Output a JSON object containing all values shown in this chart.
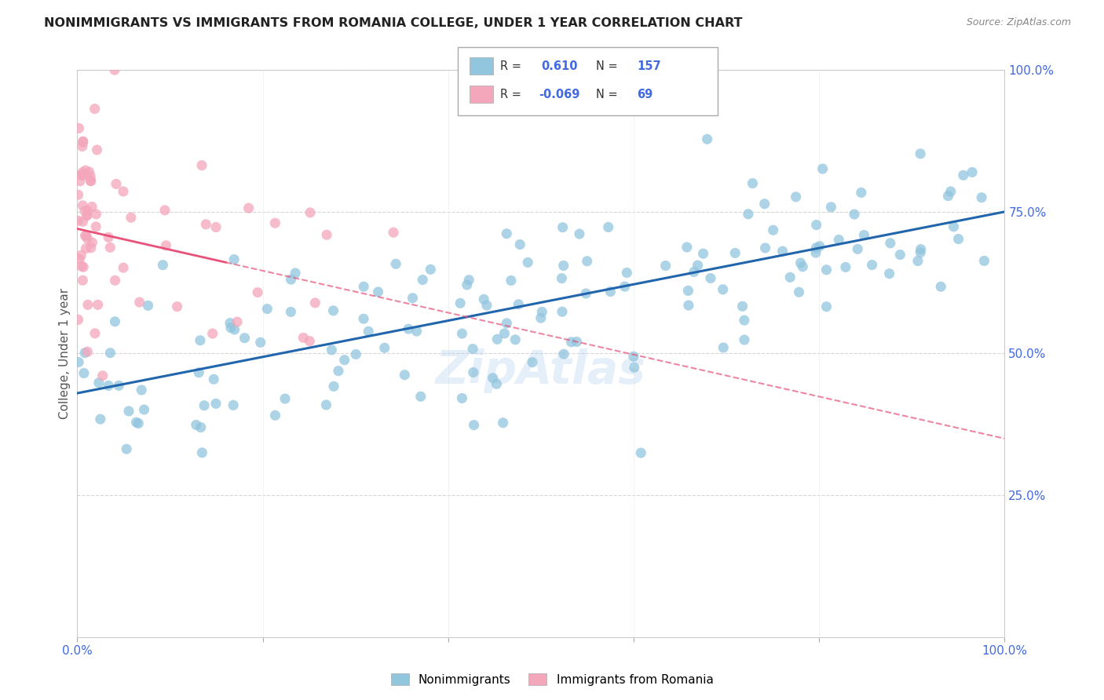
{
  "title": "NONIMMIGRANTS VS IMMIGRANTS FROM ROMANIA COLLEGE, UNDER 1 YEAR CORRELATION CHART",
  "source": "Source: ZipAtlas.com",
  "ylabel": "College, Under 1 year",
  "xlim": [
    0,
    1
  ],
  "ylim": [
    0,
    1
  ],
  "nonimmigrants_R": 0.61,
  "nonimmigrants_N": 157,
  "immigrants_R": -0.069,
  "immigrants_N": 69,
  "blue_color": "#92c5de",
  "pink_color": "#f4a6bb",
  "blue_line_color": "#2166ac",
  "pink_line_color": "#e8527a",
  "watermark": "ZipAtlas",
  "background_color": "#ffffff",
  "grid_color": "#cccccc",
  "tick_color": "#4169e1",
  "blue_intercept": 0.43,
  "blue_slope": 0.32,
  "pink_intercept": 0.72,
  "pink_slope": -0.37
}
